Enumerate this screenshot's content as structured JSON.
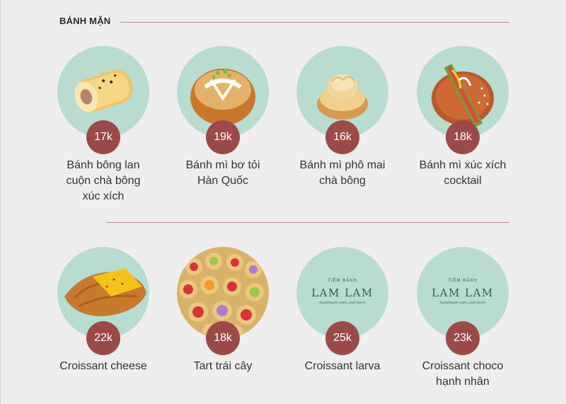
{
  "section": {
    "title": "BÁNH MẶN"
  },
  "colors": {
    "circle": "#b8dcd0",
    "price_badge": "#9b4a48",
    "rule": "#c88a8a"
  },
  "products": [
    {
      "price": "17k",
      "name": [
        "Bánh bông lan",
        "cuộn chà bông",
        "xúc xích"
      ]
    },
    {
      "price": "19k",
      "name": [
        "Bánh mì bơ tỏi",
        "Hàn Quốc"
      ]
    },
    {
      "price": "16k",
      "name": [
        "Bánh mì phô mai",
        "chà bông"
      ]
    },
    {
      "price": "18k",
      "name": [
        "Bánh mì xúc xích",
        "cocktail"
      ]
    },
    {
      "price": "22k",
      "name": [
        "Croissant cheese"
      ]
    },
    {
      "price": "18k",
      "name": [
        "Tart trái cây"
      ]
    },
    {
      "price": "25k",
      "name": [
        "Croissant larva"
      ],
      "logo": {
        "top": "TIỆM BÁNH",
        "main": "LAM LAM",
        "sub": "handmade cake and more"
      }
    },
    {
      "price": "23k",
      "name": [
        "Croissant choco",
        "hạnh nhân"
      ],
      "logo": {
        "top": "TIỆM BÁNH",
        "main": "LAM LAM",
        "sub": "handmade cake and more"
      }
    }
  ]
}
